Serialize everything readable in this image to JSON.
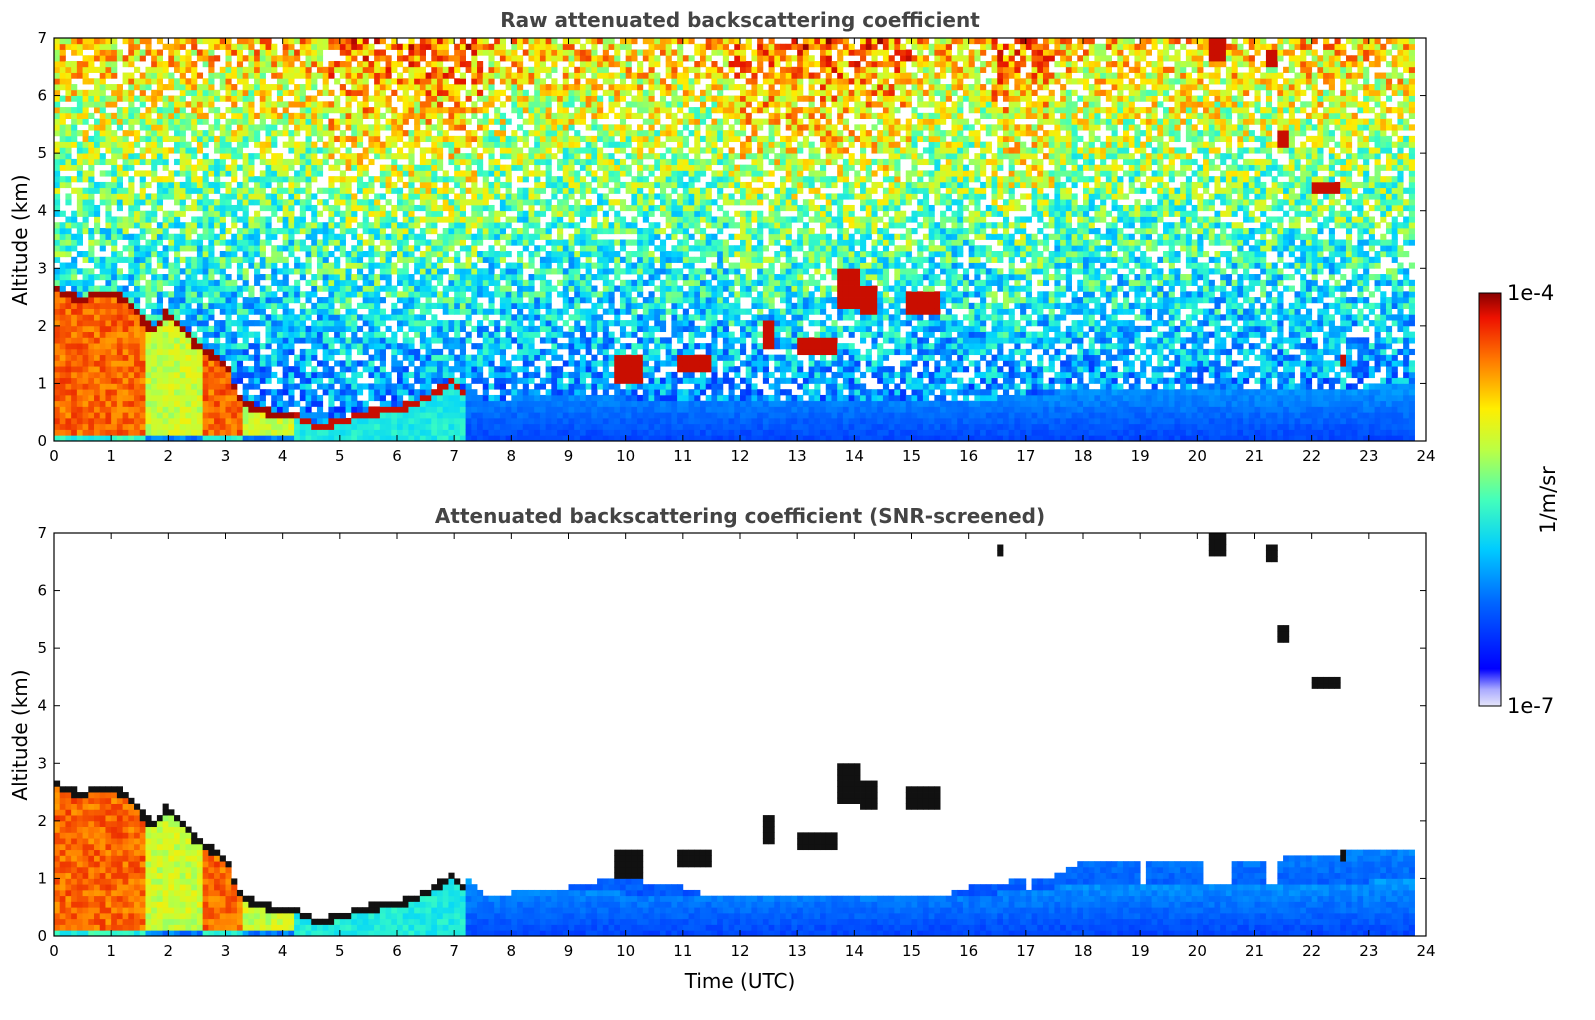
{
  "chart_data": [
    {
      "type": "heatmap",
      "title": "Raw attenuated backscattering coefficient",
      "xlabel": "",
      "ylabel": "Altitude (km)",
      "xlim": [
        0,
        24
      ],
      "ylim": [
        0,
        7
      ],
      "x_ticks": [
        "0",
        "1",
        "2",
        "3",
        "4",
        "5",
        "6",
        "7",
        "8",
        "9",
        "10",
        "11",
        "12",
        "13",
        "14",
        "15",
        "16",
        "17",
        "18",
        "19",
        "20",
        "21",
        "22",
        "23",
        "24"
      ],
      "y_ticks": [
        "0",
        "1",
        "2",
        "3",
        "4",
        "5",
        "6",
        "7"
      ],
      "data_end_time": 23.8,
      "boundary_layer_top_km": [
        [
          0,
          2.7
        ],
        [
          0.5,
          2.5
        ],
        [
          0.8,
          2.65
        ],
        [
          1.2,
          2.55
        ],
        [
          1.7,
          2.0
        ],
        [
          2.0,
          2.3
        ],
        [
          2.5,
          1.7
        ],
        [
          3.0,
          1.4
        ],
        [
          3.3,
          0.7
        ],
        [
          3.8,
          0.55
        ],
        [
          4.2,
          0.5
        ],
        [
          4.6,
          0.3
        ],
        [
          5.0,
          0.4
        ],
        [
          5.5,
          0.55
        ],
        [
          6.0,
          0.6
        ],
        [
          6.5,
          0.8
        ],
        [
          7.0,
          1.1
        ],
        [
          7.5,
          0.5
        ],
        [
          8.0,
          0.55
        ],
        [
          9.0,
          0.6
        ],
        [
          10.0,
          0.55
        ],
        [
          11.0,
          0.5
        ],
        [
          12.0,
          0.45
        ],
        [
          13.0,
          0.45
        ],
        [
          14.0,
          0.55
        ],
        [
          15.0,
          0.5
        ],
        [
          16.0,
          0.5
        ],
        [
          17.0,
          0.6
        ],
        [
          18.0,
          0.7
        ],
        [
          19.0,
          0.75
        ],
        [
          20.0,
          0.7
        ],
        [
          21.0,
          0.65
        ],
        [
          22.0,
          0.7
        ],
        [
          23.0,
          0.75
        ],
        [
          23.8,
          0.75
        ]
      ],
      "cloud_features": [
        {
          "t0": 12.45,
          "t1": 12.6,
          "z0": 1.6,
          "z1": 2.1
        },
        {
          "t0": 13.0,
          "t1": 13.7,
          "z0": 1.5,
          "z1": 1.8
        },
        {
          "t0": 13.75,
          "t1": 14.1,
          "z0": 2.3,
          "z1": 2.95
        },
        {
          "t0": 14.1,
          "t1": 14.4,
          "z0": 2.2,
          "z1": 2.7
        },
        {
          "t0": 14.95,
          "t1": 15.5,
          "z0": 2.25,
          "z1": 2.55
        },
        {
          "t0": 16.5,
          "t1": 16.6,
          "z0": 6.6,
          "z1": 6.75
        },
        {
          "t0": 20.2,
          "t1": 20.5,
          "z0": 6.6,
          "z1": 6.95
        },
        {
          "t0": 21.25,
          "t1": 21.4,
          "z0": 6.5,
          "z1": 6.75
        },
        {
          "t0": 21.4,
          "t1": 21.55,
          "z0": 5.1,
          "z1": 5.4
        },
        {
          "t0": 22.0,
          "t1": 22.5,
          "z0": 4.3,
          "z1": 4.5
        },
        {
          "t0": 22.5,
          "t1": 22.6,
          "z0": 1.35,
          "z1": 1.5
        },
        {
          "t0": 9.8,
          "t1": 10.3,
          "z0": 1.0,
          "z1": 1.5
        },
        {
          "t0": 10.9,
          "t1": 11.5,
          "z0": 1.2,
          "z1": 1.5
        }
      ]
    },
    {
      "type": "heatmap",
      "title": "Attenuated backscattering coefficient (SNR-screened)",
      "xlabel": "Time (UTC)",
      "ylabel": "Altitude (km)",
      "xlim": [
        0,
        24
      ],
      "ylim": [
        0,
        7
      ],
      "x_ticks": [
        "0",
        "1",
        "2",
        "3",
        "4",
        "5",
        "6",
        "7",
        "8",
        "9",
        "10",
        "11",
        "12",
        "13",
        "14",
        "15",
        "16",
        "17",
        "18",
        "19",
        "20",
        "21",
        "22",
        "23",
        "24"
      ],
      "y_ticks": [
        "0",
        "1",
        "2",
        "3",
        "4",
        "5",
        "6",
        "7"
      ],
      "data_end_time": 23.8,
      "screened_signal_top_km": [
        [
          7.0,
          0.7
        ],
        [
          7.5,
          0.65
        ],
        [
          8.0,
          0.75
        ],
        [
          8.5,
          0.8
        ],
        [
          9.0,
          0.85
        ],
        [
          9.5,
          0.95
        ],
        [
          10.0,
          1.0
        ],
        [
          10.5,
          0.9
        ],
        [
          11.0,
          0.85
        ],
        [
          11.5,
          0.7
        ],
        [
          12.0,
          0.45
        ],
        [
          12.5,
          0.5
        ],
        [
          13.0,
          0.35
        ],
        [
          13.5,
          0.5
        ],
        [
          14.0,
          0.55
        ],
        [
          14.5,
          0.6
        ],
        [
          15.0,
          0.65
        ],
        [
          15.5,
          0.7
        ],
        [
          16.0,
          0.85
        ],
        [
          16.5,
          0.9
        ],
        [
          17.0,
          1.0
        ],
        [
          17.5,
          1.05
        ],
        [
          18.0,
          1.3
        ],
        [
          19.0,
          1.3
        ],
        [
          20.0,
          1.3
        ],
        [
          21.0,
          1.3
        ],
        [
          22.0,
          1.4
        ],
        [
          23.0,
          1.5
        ],
        [
          23.8,
          1.55
        ]
      ],
      "gaps": [
        {
          "t0": 17.0,
          "t1": 17.1,
          "z_bottom": 0.5
        },
        {
          "t0": 19.0,
          "t1": 19.15,
          "z_bottom": 0.7
        },
        {
          "t0": 20.15,
          "t1": 20.6,
          "z_bottom": 0.5
        },
        {
          "t0": 21.2,
          "t1": 21.35,
          "z_bottom": 0.8
        }
      ]
    }
  ],
  "colorbar": {
    "max_label": "1e-4",
    "min_label": "1e-7",
    "unit_label": "1/m/sr",
    "scale": "log",
    "colormap": "jet",
    "range": [
      1e-07,
      0.0001
    ]
  }
}
